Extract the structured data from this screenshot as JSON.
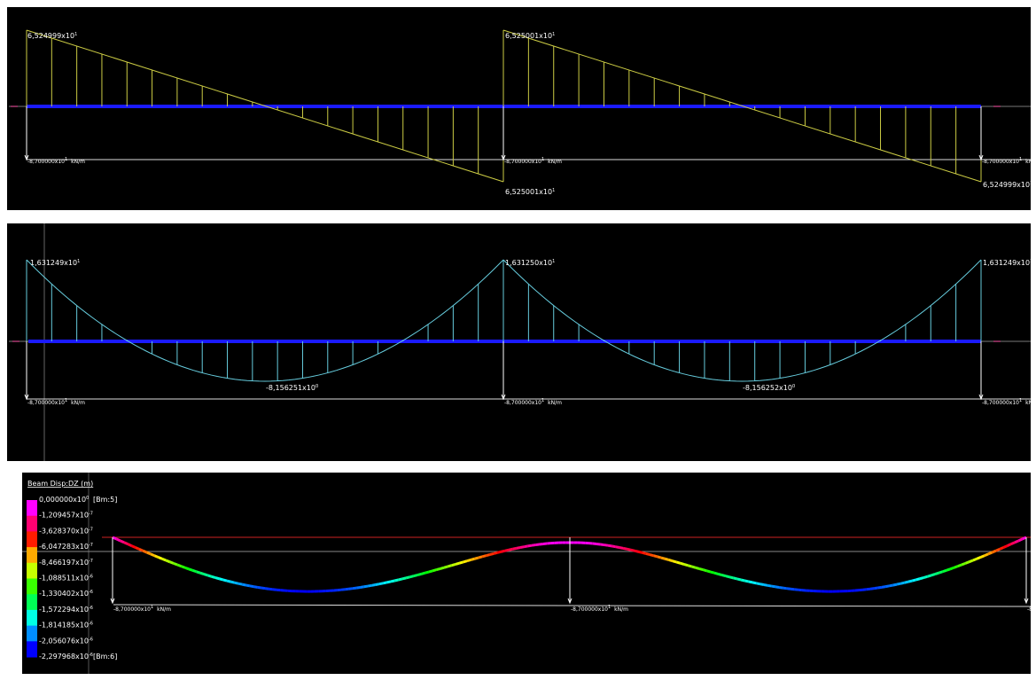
{
  "panels": [
    {
      "name": "shear",
      "labels": [
        {
          "text": "6,524999x10",
          "sup": "1"
        },
        {
          "text": "6,525001x10",
          "sup": "1"
        },
        {
          "text": "6,525001x10",
          "sup": "1"
        },
        {
          "text": "6,524999x10",
          "sup": "1"
        }
      ],
      "loads": [
        {
          "text": "-8,700000x10",
          "sup": "1",
          "unit": "kN/m"
        },
        {
          "text": "-8,700000x10",
          "sup": "1",
          "unit": "kN/m"
        },
        {
          "text": "-8,700000x10",
          "sup": "1",
          "unit": "kN/m"
        }
      ]
    },
    {
      "name": "moment",
      "labels": [
        {
          "text": "1,631249x10",
          "sup": "1"
        },
        {
          "text": "1,631250x10",
          "sup": "1"
        },
        {
          "text": "1,631249x10",
          "sup": "1"
        },
        {
          "text": "-8,156251x10",
          "sup": "0"
        },
        {
          "text": "-8,156252x10",
          "sup": "0"
        }
      ],
      "loads": [
        {
          "text": "-8,700000x10",
          "sup": "1",
          "unit": "kN/m"
        },
        {
          "text": "-8,700000x10",
          "sup": "1",
          "unit": "kN/m"
        },
        {
          "text": "-8,700000x10",
          "sup": "1",
          "unit": "kN/m"
        }
      ]
    },
    {
      "name": "displacement",
      "legend": {
        "title": "Beam Disp:DZ  (m)",
        "labels": [
          {
            "text": "0,000000x10",
            "sup": "0",
            "tag": "[Bm:5]"
          },
          {
            "text": "-1,209457x10",
            "sup": "-7"
          },
          {
            "text": "-3,628370x10",
            "sup": "-7"
          },
          {
            "text": "-6,047283x10",
            "sup": "-7"
          },
          {
            "text": "-8,466197x10",
            "sup": "-7"
          },
          {
            "text": "-1,088511x10",
            "sup": "-6"
          },
          {
            "text": "-1,330402x10",
            "sup": "-6"
          },
          {
            "text": "-1,572294x10",
            "sup": "-6"
          },
          {
            "text": "-1,814185x10",
            "sup": "-6"
          },
          {
            "text": "-2,056076x10",
            "sup": "-6"
          },
          {
            "text": "-2,297968x10",
            "sup": "-6",
            "tag": "[Bm:6]"
          }
        ]
      },
      "loads": [
        {
          "text": "-8,700000x10",
          "sup": "1",
          "unit": "kN/m"
        },
        {
          "text": "-8,700000x10",
          "sup": "1",
          "unit": "kN/m"
        },
        {
          "text": "-8,700000x10",
          "sup": "1",
          "unit": "kN/m"
        }
      ]
    }
  ]
}
